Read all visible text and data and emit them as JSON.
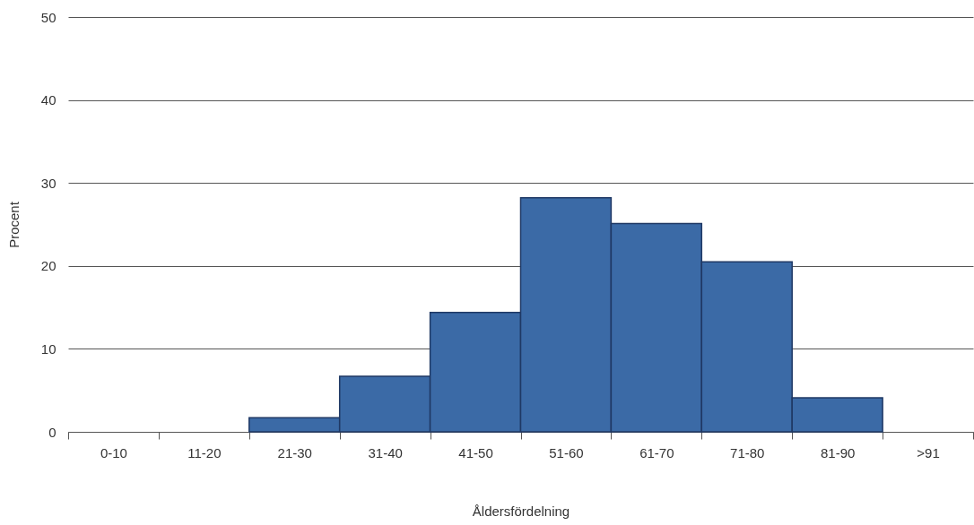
{
  "chart_data": {
    "type": "bar",
    "xlabel": "Åldersfördelning",
    "ylabel": "Procent",
    "categories": [
      "0-10",
      "11-20",
      "21-30",
      "31-40",
      "41-50",
      "51-60",
      "61-70",
      "71-80",
      "81-90",
      ">91"
    ],
    "values": [
      0,
      0,
      1.7,
      6.7,
      14.4,
      28.2,
      25.1,
      20.5,
      4.1,
      0
    ],
    "color": "#3b6aa6",
    "ylim": [
      0,
      50
    ],
    "yticks": [
      0,
      10,
      20,
      30,
      40,
      50
    ],
    "grid": "y"
  }
}
